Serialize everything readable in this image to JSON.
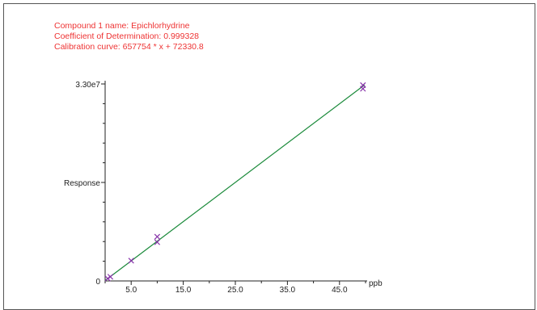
{
  "info": {
    "compound": "Compound 1 name: Epichlorhydrine",
    "coefficient": "Coefficient of Determination: 0.999328",
    "curve": "Calibration curve: 657754 * x + 72330.8"
  },
  "colors": {
    "info_text": "#ee3333",
    "fit_line": "#1a8a3a",
    "points": "#8833aa",
    "axis": "#222222"
  },
  "chart_data": {
    "type": "scatter",
    "xlabel": "ppb",
    "ylabel": "Response",
    "xlim": [
      0,
      50
    ],
    "ylim": [
      0,
      33000000
    ],
    "x_ticks": [
      {
        "value": 5,
        "label": "5.0"
      },
      {
        "value": 15,
        "label": "15.0"
      },
      {
        "value": 25,
        "label": "25.0"
      },
      {
        "value": 35,
        "label": "35.0"
      },
      {
        "value": 45,
        "label": "45.0"
      }
    ],
    "y_ticks": [
      {
        "value": 0,
        "label": "0"
      },
      {
        "value": 33000000,
        "label": "3.30e7"
      }
    ],
    "fit": {
      "slope": 657754,
      "intercept": 72330.8
    },
    "points": [
      {
        "x": 0.5,
        "y": 400000
      },
      {
        "x": 1,
        "y": 700000
      },
      {
        "x": 5,
        "y": 3400000
      },
      {
        "x": 10,
        "y": 7400000
      },
      {
        "x": 10,
        "y": 6500000
      },
      {
        "x": 49.5,
        "y": 32800000
      },
      {
        "x": 49.5,
        "y": 32200000
      }
    ]
  }
}
